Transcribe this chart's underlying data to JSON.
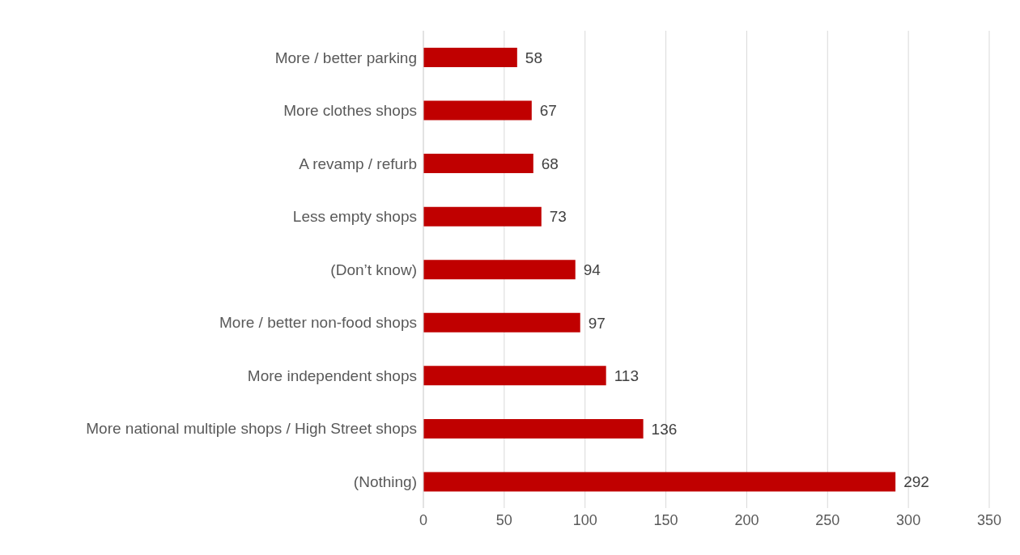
{
  "chart_data": {
    "type": "bar",
    "orientation": "horizontal",
    "categories": [
      "More / better parking",
      "More clothes shops",
      "A revamp / refurb",
      "Less empty shops",
      "(Don’t know)",
      "More / better non-food shops",
      "More independent shops",
      "More national multiple shops / High Street shops",
      "(Nothing)"
    ],
    "values": [
      58,
      67,
      68,
      73,
      94,
      97,
      113,
      136,
      292
    ],
    "color": "#c00000",
    "xlim": [
      0,
      350
    ],
    "xticks": [
      0,
      50,
      100,
      150,
      200,
      250,
      300,
      350
    ],
    "grid": "x",
    "data_labels": true,
    "legend": false
  }
}
